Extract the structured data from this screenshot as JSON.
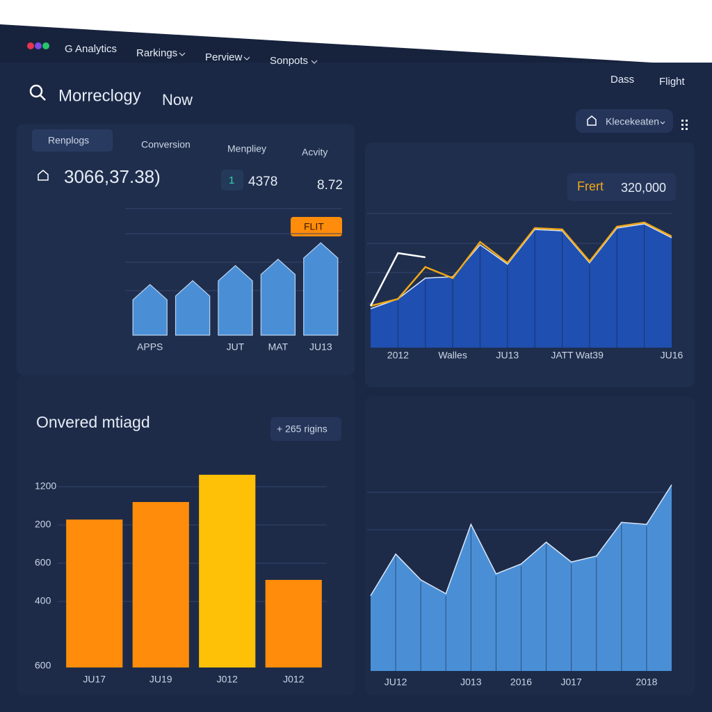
{
  "nav": {
    "brand": "G Analytics",
    "items": [
      "Rarkings",
      "Perview",
      "Sonpots"
    ],
    "right": [
      "Dass",
      "Flight"
    ]
  },
  "header": {
    "title": "Morreclogy",
    "subtitle": "Now",
    "dropdown": "Klecekeaten"
  },
  "panel1": {
    "tabs": [
      "Renplogs",
      "Conversion",
      "Menpliey",
      "Acvity"
    ],
    "stat_main": "3066,37.38)",
    "stat_badge": "1",
    "stat_2": "4378",
    "stat_3": "8.72",
    "badge": "FLIT"
  },
  "panel2": {
    "badge": "Frert",
    "badge_value": "320,000"
  },
  "panel3": {
    "title": "Onvered mtiagd",
    "badge": "+ 265 rigins"
  },
  "chart_data": [
    {
      "type": "bar",
      "categories": [
        "APPS",
        null,
        "JUT",
        "MAT",
        "JU13"
      ],
      "values": [
        40,
        43,
        55,
        60,
        73
      ],
      "color": "#4a8fd6",
      "ylim": [
        0,
        100
      ]
    },
    {
      "type": "area",
      "categories": [
        null,
        "2012",
        null,
        "Walles",
        null,
        "JU13",
        null,
        "JATT",
        "Wat39",
        null,
        null,
        "JU16"
      ],
      "ylim": [
        0,
        100
      ],
      "series": [
        {
          "color": "#1f4fb0",
          "fill": true,
          "values": [
            28,
            35,
            50,
            51,
            74,
            60,
            85,
            84,
            61,
            86,
            89,
            79
          ]
        },
        {
          "color": "#f0a818",
          "fill": false,
          "values": [
            30,
            35,
            58,
            50,
            76,
            61,
            86,
            85,
            62,
            87,
            90,
            80
          ]
        },
        {
          "color": "#ffffff",
          "fill": false,
          "values": [
            30,
            68,
            65,
            null,
            null,
            null,
            null,
            null,
            null,
            null,
            null,
            null
          ]
        }
      ]
    },
    {
      "type": "bar",
      "categories": [
        "JU17",
        "JU19",
        "J012",
        "J012"
      ],
      "values": [
        76,
        85,
        99,
        45
      ],
      "colors": [
        "#ff8c0a",
        "#ff8c0a",
        "#ffc107",
        "#ff8c0a"
      ],
      "ylim": [
        0,
        100
      ],
      "y_labels": [
        "1200",
        "200",
        "600",
        "400",
        "600"
      ]
    },
    {
      "type": "area",
      "categories": [
        null,
        "JU12",
        null,
        null,
        "J013",
        null,
        "2016",
        null,
        "J017",
        null,
        null,
        "2018",
        null
      ],
      "ylim": [
        0,
        100
      ],
      "series": [
        {
          "color": "#4a8fd6",
          "fill": true,
          "values": [
            38,
            59,
            46,
            39,
            74,
            49,
            54,
            65,
            55,
            58,
            75,
            74,
            94
          ]
        }
      ]
    }
  ]
}
